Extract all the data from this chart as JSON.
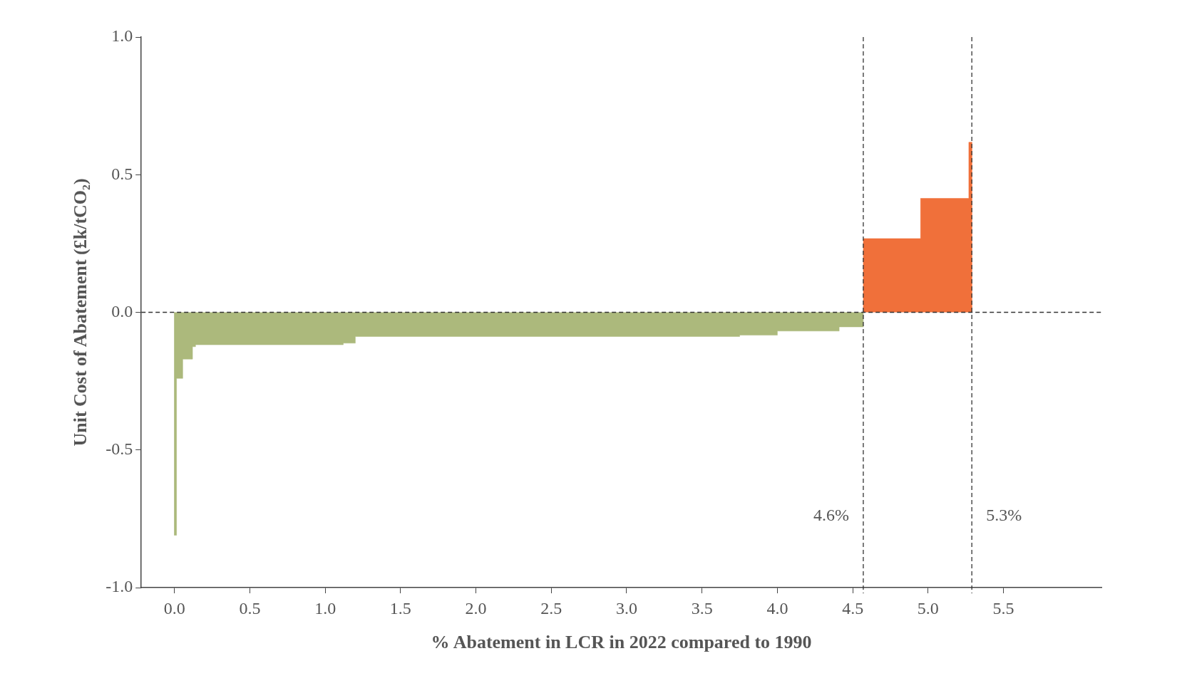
{
  "chart_data": {
    "type": "area",
    "xlabel": "% Abatement in LCR in 2022 compared to 1990",
    "ylabel": "Unit Cost of Abatement (£k/tCO₂)",
    "xlim": [
      -0.22,
      6.15
    ],
    "xticks": [
      {
        "value": 0,
        "label": "0.0"
      },
      {
        "value": 0.5,
        "label": "0.5"
      },
      {
        "value": 1,
        "label": "1.0"
      },
      {
        "value": 1.5,
        "label": "1.5"
      },
      {
        "value": 2,
        "label": "2.0"
      },
      {
        "value": 2.5,
        "label": "2.5"
      },
      {
        "value": 3,
        "label": "3.0"
      },
      {
        "value": 3.5,
        "label": "3.5"
      },
      {
        "value": 4,
        "label": "4.0"
      },
      {
        "value": 4.5,
        "label": "4.5"
      },
      {
        "value": 5,
        "label": "5.0"
      },
      {
        "value": 5.5,
        "label": "5.5"
      }
    ],
    "ylim": [
      -1,
      1
    ],
    "yticks": [
      {
        "value": -1,
        "label": "-1.0"
      },
      {
        "value": -0.5,
        "label": "-0.5"
      },
      {
        "value": 0,
        "label": "0.0"
      },
      {
        "value": 0.5,
        "label": "0.5"
      },
      {
        "value": 1,
        "label": "1.0"
      }
    ],
    "series": [
      {
        "color": "#acb97c",
        "x": [
          0,
          0,
          0.014,
          0.014,
          0.055,
          0.055,
          0.12,
          0.12,
          0.14,
          0.14,
          1.12,
          1.12,
          1.2,
          1.2,
          3.75,
          3.75,
          4.0,
          4.0,
          4.41,
          4.41,
          4.57,
          4.57
        ],
        "values": [
          0,
          -0.81,
          -0.81,
          -0.24,
          -0.24,
          -0.17,
          -0.17,
          -0.125,
          -0.125,
          -0.118,
          -0.118,
          -0.112,
          -0.112,
          -0.088,
          -0.088,
          -0.083,
          -0.083,
          -0.068,
          -0.068,
          -0.053,
          -0.053,
          0
        ]
      },
      {
        "color": "#f0703a",
        "x": [
          4.57,
          4.57,
          4.95,
          4.95,
          5.27,
          5.27,
          5.29,
          5.29
        ],
        "values": [
          0,
          0.268,
          0.268,
          0.414,
          0.414,
          0.618,
          0.618,
          0
        ]
      }
    ],
    "ref_lines": [
      {
        "axis": "y",
        "value": 0,
        "line_style": "dashed",
        "color": "#333333"
      },
      {
        "axis": "x",
        "value": 4.57,
        "label": "4.6%",
        "line_style": "dashed",
        "color": "#333333"
      },
      {
        "axis": "x",
        "value": 5.29,
        "label": "5.3%",
        "line_style": "dashed",
        "color": "#333333"
      }
    ],
    "grid": false,
    "legend": false,
    "marker": "none"
  }
}
